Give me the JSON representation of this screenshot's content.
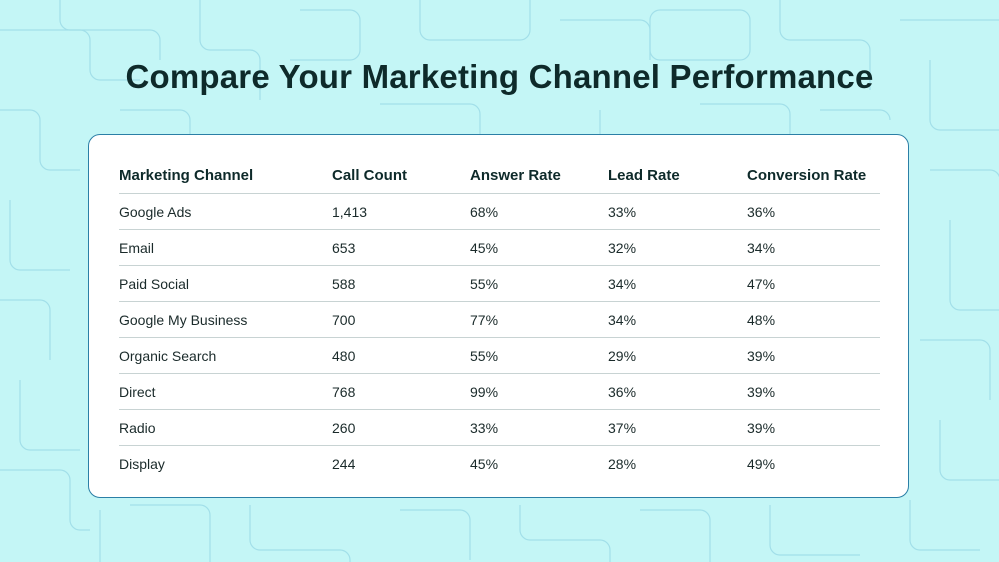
{
  "title": "Compare Your Marketing Channel Performance",
  "colors": {
    "background": "#c4f6f6",
    "pattern_line": "#9fdde8",
    "card_border": "#2b7fa6",
    "title_text": "#0e2a2a"
  },
  "chart_data": {
    "type": "table",
    "columns": [
      "Marketing Channel",
      "Call Count",
      "Answer Rate",
      "Lead Rate",
      "Conversion Rate"
    ],
    "rows": [
      [
        "Google Ads",
        "1,413",
        "68%",
        "33%",
        "36%"
      ],
      [
        "Email",
        "653",
        "45%",
        "32%",
        "34%"
      ],
      [
        "Paid Social",
        "588",
        "55%",
        "34%",
        "47%"
      ],
      [
        "Google My Business",
        "700",
        "77%",
        "34%",
        "48%"
      ],
      [
        "Organic Search",
        "480",
        "55%",
        "29%",
        "39%"
      ],
      [
        "Direct",
        "768",
        "99%",
        "36%",
        "39%"
      ],
      [
        "Radio",
        "260",
        "33%",
        "37%",
        "39%"
      ],
      [
        "Display",
        "244",
        "45%",
        "28%",
        "49%"
      ]
    ]
  }
}
